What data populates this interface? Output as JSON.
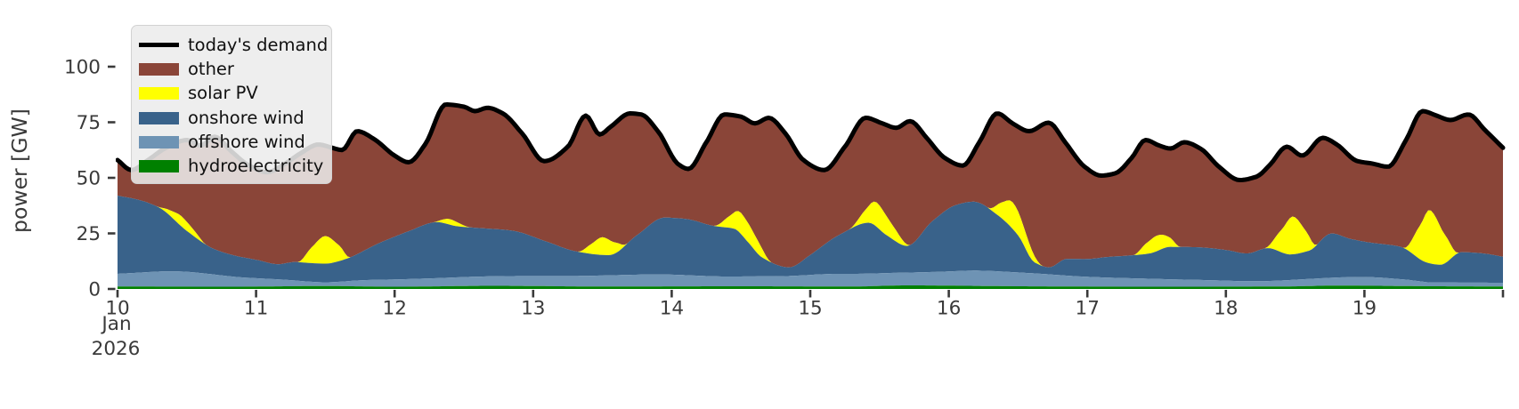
{
  "chart_data": {
    "type": "area",
    "stacked": true,
    "title": "",
    "ylabel": "power [GW]",
    "x_unit": "day of month, hourly resolution",
    "x_range": [
      10,
      20
    ],
    "ylim": [
      0,
      124
    ],
    "grid": false,
    "legend_position": "upper-left",
    "x_annotation": [
      "Jan",
      "2026"
    ],
    "yticks": [
      0,
      25,
      50,
      75,
      100
    ],
    "xticks": [
      {
        "v": 10,
        "label": "10"
      },
      {
        "v": 11,
        "label": "11"
      },
      {
        "v": 12,
        "label": "12"
      },
      {
        "v": 13,
        "label": "13"
      },
      {
        "v": 14,
        "label": "14"
      },
      {
        "v": 15,
        "label": "15"
      },
      {
        "v": 16,
        "label": "16"
      },
      {
        "v": 17,
        "label": "17"
      },
      {
        "v": 18,
        "label": "18"
      },
      {
        "v": 19,
        "label": "19"
      },
      {
        "v": 20,
        "label": ""
      }
    ],
    "legend": [
      {
        "label": "today's demand",
        "color": "#000000",
        "type": "line"
      },
      {
        "label": "other",
        "color": "#8A4538",
        "type": "patch"
      },
      {
        "label": "solar PV",
        "color": "#FFFF00",
        "type": "patch"
      },
      {
        "label": "onshore wind",
        "color": "#39628A",
        "type": "patch"
      },
      {
        "label": "offshore wind",
        "color": "#6E93B4",
        "type": "patch"
      },
      {
        "label": "hydroelectricity",
        "color": "#008000",
        "type": "patch"
      }
    ],
    "stack_order": [
      "hydro",
      "offshore",
      "onshore",
      "solar",
      "other"
    ],
    "note": "'other' band fills the gap between the stacked renewables and the demand line; units GW, x in days of Jan 2026",
    "series": {
      "demand": {
        "name": "today's demand",
        "color": "#000000",
        "points": [
          [
            10.0,
            58
          ],
          [
            10.1,
            53.5
          ],
          [
            10.22,
            58
          ],
          [
            10.35,
            63.5
          ],
          [
            10.5,
            67
          ],
          [
            10.6,
            64.5
          ],
          [
            10.7,
            68.5
          ],
          [
            10.82,
            62
          ],
          [
            10.95,
            55.5
          ],
          [
            11.08,
            52.5
          ],
          [
            11.2,
            56
          ],
          [
            11.32,
            61
          ],
          [
            11.45,
            65
          ],
          [
            11.55,
            63.5
          ],
          [
            11.62,
            62.5
          ],
          [
            11.73,
            71
          ],
          [
            11.85,
            67.5
          ],
          [
            12.0,
            60
          ],
          [
            12.1,
            57
          ],
          [
            12.22,
            65
          ],
          [
            12.37,
            83
          ],
          [
            12.5,
            82
          ],
          [
            12.58,
            80
          ],
          [
            12.67,
            81.5
          ],
          [
            12.78,
            79
          ],
          [
            12.92,
            70
          ],
          [
            13.08,
            57.5
          ],
          [
            13.25,
            64
          ],
          [
            13.38,
            78
          ],
          [
            13.48,
            69.5
          ],
          [
            13.56,
            73
          ],
          [
            13.7,
            79
          ],
          [
            13.78,
            78.5
          ],
          [
            13.9,
            71
          ],
          [
            14.05,
            56
          ],
          [
            14.12,
            54
          ],
          [
            14.25,
            66
          ],
          [
            14.38,
            78.5
          ],
          [
            14.5,
            77.5
          ],
          [
            14.6,
            74.5
          ],
          [
            14.7,
            77
          ],
          [
            14.82,
            70
          ],
          [
            14.95,
            58
          ],
          [
            15.1,
            53.5
          ],
          [
            15.25,
            64
          ],
          [
            15.4,
            77
          ],
          [
            15.52,
            74.5
          ],
          [
            15.62,
            72.5
          ],
          [
            15.72,
            75.5
          ],
          [
            15.84,
            68
          ],
          [
            15.97,
            59
          ],
          [
            16.1,
            55.5
          ],
          [
            16.22,
            66
          ],
          [
            16.35,
            79
          ],
          [
            16.46,
            74.5
          ],
          [
            16.58,
            71
          ],
          [
            16.72,
            74.8
          ],
          [
            16.84,
            66
          ],
          [
            16.98,
            55
          ],
          [
            17.1,
            51
          ],
          [
            17.2,
            52
          ],
          [
            17.32,
            59
          ],
          [
            17.42,
            67
          ],
          [
            17.52,
            64.5
          ],
          [
            17.6,
            63.2
          ],
          [
            17.7,
            66
          ],
          [
            17.82,
            63
          ],
          [
            17.95,
            55
          ],
          [
            18.1,
            49
          ],
          [
            18.22,
            50.5
          ],
          [
            18.32,
            56
          ],
          [
            18.44,
            64
          ],
          [
            18.55,
            60
          ],
          [
            18.7,
            68
          ],
          [
            18.8,
            65
          ],
          [
            18.95,
            57.5
          ],
          [
            19.05,
            56.5
          ],
          [
            19.17,
            55
          ],
          [
            19.3,
            67
          ],
          [
            19.42,
            80
          ],
          [
            19.52,
            78
          ],
          [
            19.62,
            76
          ],
          [
            19.75,
            78.5
          ],
          [
            19.87,
            71.5
          ],
          [
            20.0,
            63.5
          ]
        ]
      },
      "hydro": {
        "name": "hydroelectricity",
        "color": "#008000",
        "points": [
          [
            10.0,
            1.1
          ],
          [
            10.8,
            1.0
          ],
          [
            11.5,
            1.3
          ],
          [
            12.0,
            1.0
          ],
          [
            12.7,
            1.4
          ],
          [
            13.5,
            1.1
          ],
          [
            14.5,
            1.2
          ],
          [
            15.3,
            1.1
          ],
          [
            15.7,
            1.6
          ],
          [
            16.5,
            1.2
          ],
          [
            17.5,
            1.0
          ],
          [
            18.4,
            1.1
          ],
          [
            18.8,
            1.5
          ],
          [
            19.5,
            1.2
          ],
          [
            20.0,
            1.1
          ]
        ]
      },
      "offshore": {
        "name": "offshore wind",
        "color": "#6E93B4",
        "points": [
          [
            10.0,
            5.7
          ],
          [
            10.4,
            6.9
          ],
          [
            10.9,
            4.2
          ],
          [
            11.2,
            3.0
          ],
          [
            11.5,
            1.7
          ],
          [
            11.8,
            2.9
          ],
          [
            12.3,
            3.7
          ],
          [
            12.8,
            4.4
          ],
          [
            13.3,
            4.7
          ],
          [
            13.9,
            5.4
          ],
          [
            14.4,
            4.4
          ],
          [
            14.8,
            4.6
          ],
          [
            15.2,
            5.7
          ],
          [
            15.6,
            5.7
          ],
          [
            15.9,
            6.1
          ],
          [
            16.2,
            6.9
          ],
          [
            16.6,
            5.9
          ],
          [
            17.0,
            4.4
          ],
          [
            17.5,
            3.5
          ],
          [
            17.9,
            2.9
          ],
          [
            18.2,
            2.4
          ],
          [
            18.6,
            3.2
          ],
          [
            19.0,
            3.9
          ],
          [
            19.3,
            2.9
          ],
          [
            19.5,
            1.7
          ],
          [
            19.8,
            1.7
          ],
          [
            20.0,
            1.7
          ]
        ]
      },
      "onshore": {
        "name": "onshore wind",
        "color": "#39628A",
        "points": [
          [
            10.0,
            35.2
          ],
          [
            10.15,
            32.8
          ],
          [
            10.3,
            28.8
          ],
          [
            10.5,
            18.4
          ],
          [
            10.7,
            11.4
          ],
          [
            10.85,
            9.5
          ],
          [
            11.0,
            8.3
          ],
          [
            11.15,
            6.8
          ],
          [
            11.3,
            8.4
          ],
          [
            11.5,
            8.4
          ],
          [
            11.65,
            10.1
          ],
          [
            11.9,
            16.8
          ],
          [
            12.1,
            21.5
          ],
          [
            12.3,
            25.2
          ],
          [
            12.45,
            23
          ],
          [
            12.6,
            21.9
          ],
          [
            12.85,
            20.4
          ],
          [
            13.1,
            15.4
          ],
          [
            13.3,
            11.2
          ],
          [
            13.55,
            9.1
          ],
          [
            13.75,
            17.8
          ],
          [
            13.95,
            25.6
          ],
          [
            14.1,
            25.3
          ],
          [
            14.3,
            22.7
          ],
          [
            14.45,
            21.5
          ],
          [
            14.55,
            15.5
          ],
          [
            14.65,
            8.6
          ],
          [
            14.85,
            3.9
          ],
          [
            15.0,
            9
          ],
          [
            15.2,
            17.2
          ],
          [
            15.42,
            22.9
          ],
          [
            15.55,
            17.1
          ],
          [
            15.7,
            12
          ],
          [
            15.88,
            22.8
          ],
          [
            16.05,
            29.7
          ],
          [
            16.18,
            31
          ],
          [
            16.35,
            25.4
          ],
          [
            16.5,
            16.7
          ],
          [
            16.62,
            4.9
          ],
          [
            16.72,
            3.1
          ],
          [
            16.85,
            7.5
          ],
          [
            17.0,
            8
          ],
          [
            17.15,
            9.3
          ],
          [
            17.3,
            10.2
          ],
          [
            17.45,
            11.4
          ],
          [
            17.6,
            14.6
          ],
          [
            17.78,
            14.7
          ],
          [
            18.0,
            13.8
          ],
          [
            18.15,
            12.5
          ],
          [
            18.3,
            14.8
          ],
          [
            18.47,
            11.5
          ],
          [
            18.6,
            12.7
          ],
          [
            18.76,
            19.9
          ],
          [
            18.9,
            17.2
          ],
          [
            19.05,
            15.5
          ],
          [
            19.25,
            14.7
          ],
          [
            19.45,
            8.8
          ],
          [
            19.55,
            8
          ],
          [
            19.7,
            13.7
          ],
          [
            19.85,
            13.2
          ],
          [
            20.0,
            11.7
          ]
        ]
      },
      "solar": {
        "name": "solar PV",
        "color": "#FFFF00",
        "points": [
          [
            10.0,
            0
          ],
          [
            10.28,
            0
          ],
          [
            10.38,
            2.5
          ],
          [
            10.46,
            4.6
          ],
          [
            10.56,
            2.5
          ],
          [
            10.64,
            0
          ],
          [
            11.0,
            0
          ],
          [
            11.3,
            0
          ],
          [
            11.4,
            7
          ],
          [
            11.5,
            12.4
          ],
          [
            11.6,
            7
          ],
          [
            11.68,
            0
          ],
          [
            12.0,
            0
          ],
          [
            12.28,
            0
          ],
          [
            12.4,
            2.5
          ],
          [
            12.55,
            0
          ],
          [
            12.95,
            0
          ],
          [
            13.32,
            0
          ],
          [
            13.42,
            4.5
          ],
          [
            13.5,
            8
          ],
          [
            13.6,
            4.5
          ],
          [
            13.68,
            0
          ],
          [
            14.0,
            0
          ],
          [
            14.3,
            0
          ],
          [
            14.42,
            5.5
          ],
          [
            14.5,
            9.5
          ],
          [
            14.62,
            6
          ],
          [
            14.72,
            0
          ],
          [
            15.0,
            0
          ],
          [
            15.28,
            0
          ],
          [
            15.4,
            6
          ],
          [
            15.48,
            11
          ],
          [
            15.6,
            6
          ],
          [
            15.73,
            0
          ],
          [
            16.0,
            0
          ],
          [
            16.28,
            0
          ],
          [
            16.38,
            7
          ],
          [
            16.46,
            12
          ],
          [
            16.56,
            7
          ],
          [
            16.68,
            0
          ],
          [
            17.0,
            0
          ],
          [
            17.33,
            0
          ],
          [
            17.43,
            5
          ],
          [
            17.5,
            7
          ],
          [
            17.6,
            4
          ],
          [
            17.67,
            0
          ],
          [
            18.0,
            0
          ],
          [
            18.28,
            0
          ],
          [
            18.4,
            10
          ],
          [
            18.48,
            17
          ],
          [
            18.58,
            9
          ],
          [
            18.66,
            0
          ],
          [
            19.0,
            0
          ],
          [
            19.28,
            0
          ],
          [
            19.4,
            15
          ],
          [
            19.47,
            24
          ],
          [
            19.58,
            13
          ],
          [
            19.68,
            0
          ],
          [
            20.0,
            0
          ]
        ]
      }
    },
    "colors": {
      "other": "#8A4538",
      "solar": "#FFFF00",
      "onshore": "#39628A",
      "offshore": "#6E93B4",
      "hydro": "#008000",
      "demand_line": "#000000"
    }
  },
  "style": {
    "text_color": "#3a3a3a",
    "legend_text_color": "#101010"
  }
}
